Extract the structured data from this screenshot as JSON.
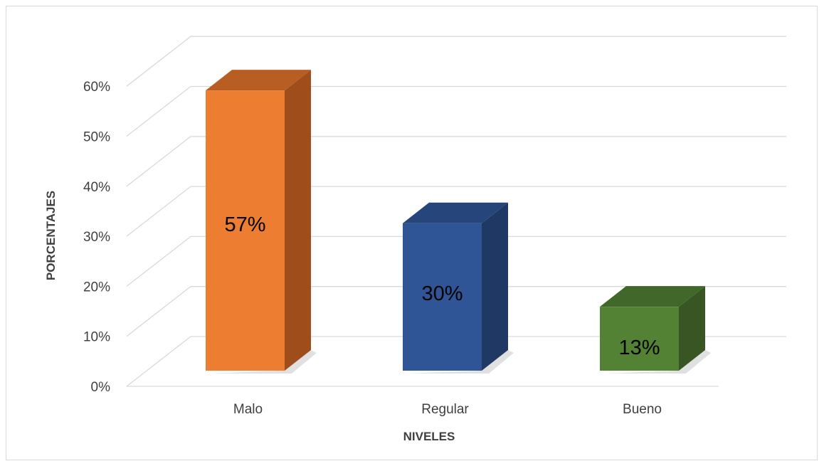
{
  "chart_data": {
    "type": "bar",
    "style": "3d-column",
    "categories": [
      "Malo",
      "Regular",
      "Bueno"
    ],
    "values": [
      57,
      30,
      13
    ],
    "data_labels": [
      "57%",
      "30%",
      "13%"
    ],
    "colors": {
      "front": [
        "#ED7D31",
        "#2F5597",
        "#548235"
      ],
      "side": [
        "#9E4D1B",
        "#1F3864",
        "#375623"
      ],
      "top": [
        "#B85E22",
        "#26457A",
        "#42672A"
      ],
      "grid": "#D9D9D9",
      "text": "#404040"
    },
    "title": "",
    "xlabel": "NIVELES",
    "ylabel": "PORCENTAJES",
    "ylim": [
      0,
      60
    ],
    "yticks": [
      0,
      10,
      20,
      30,
      40,
      50,
      60
    ],
    "ytick_labels": [
      "0%",
      "10%",
      "20%",
      "30%",
      "40%",
      "50%",
      "60%"
    ],
    "grid": true,
    "legend": "none"
  }
}
